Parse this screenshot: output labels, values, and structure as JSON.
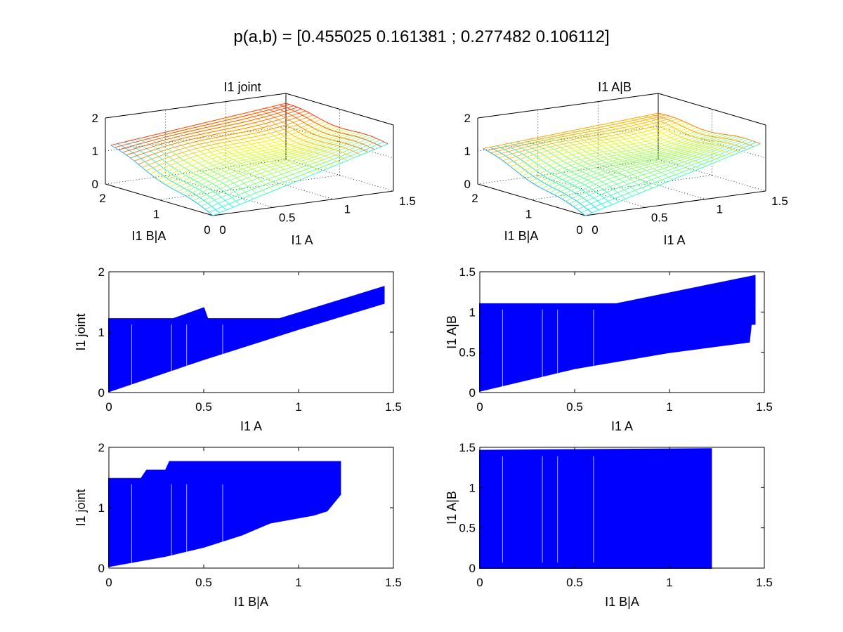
{
  "figure": {
    "title": "p(a,b) = [0.455025 0.161381 ; 0.277482 0.106112]",
    "background": "#ffffff",
    "scatter_color": "#0000ff"
  },
  "chart_data": [
    {
      "type": "surface",
      "title": "I1 joint",
      "xlabel": "I1 A",
      "ylabel": "I1 B|A",
      "zlabel": "",
      "xlim": [
        0,
        1.5
      ],
      "ylim": [
        0,
        2
      ],
      "zlim": [
        0,
        2
      ],
      "xticks": [
        "0",
        "0.5",
        "1",
        "1.5"
      ],
      "yticks": [
        "0",
        "1",
        "2"
      ],
      "zticks": [
        "0",
        "1",
        "2"
      ],
      "colormap": "jet",
      "grid": true,
      "z_corners": {
        "a0_b0": 0.0,
        "a1_b0": 1.45,
        "a0_b1": 1.2,
        "a1_b1": 1.75
      }
    },
    {
      "type": "surface",
      "title": "I1 A|B",
      "xlabel": "I1 A",
      "ylabel": "I1 B|A",
      "zlabel": "",
      "xlim": [
        0,
        1.5
      ],
      "ylim": [
        0,
        2
      ],
      "zlim": [
        0,
        2
      ],
      "xticks": [
        "0",
        "0.5",
        "1",
        "1.5"
      ],
      "yticks": [
        "0",
        "1",
        "2"
      ],
      "zticks": [
        "0",
        "1",
        "2"
      ],
      "colormap": "jet",
      "grid": true,
      "z_corners": {
        "a0_b0": 0.0,
        "a1_b0": 1.45,
        "a0_b1": 1.1,
        "a1_b1": 1.45
      }
    },
    {
      "type": "scatter",
      "title": "",
      "xlabel": "I1 A",
      "ylabel": "I1 joint",
      "xlim": [
        0,
        1.5
      ],
      "ylim": [
        0,
        2
      ],
      "xticks": [
        "0",
        "0.5",
        "1",
        "1.5"
      ],
      "yticks": [
        "0",
        "1",
        "2"
      ],
      "color": "#0000ff",
      "lower_edge": [
        [
          0,
          0.02
        ],
        [
          0.5,
          0.55
        ],
        [
          1.0,
          1.05
        ],
        [
          1.45,
          1.48
        ]
      ],
      "upper_edge": [
        [
          0,
          1.22
        ],
        [
          0.34,
          1.22
        ],
        [
          0.5,
          1.4
        ],
        [
          0.52,
          1.22
        ],
        [
          0.9,
          1.22
        ],
        [
          1.45,
          1.75
        ]
      ]
    },
    {
      "type": "scatter",
      "title": "",
      "xlabel": "I1 A",
      "ylabel": "I1 A|B",
      "xlim": [
        0,
        1.5
      ],
      "ylim": [
        0,
        1.5
      ],
      "xticks": [
        "0",
        "0.5",
        "1",
        "1.5"
      ],
      "yticks": [
        "0",
        "0.5",
        "1",
        "1.5"
      ],
      "color": "#0000ff",
      "lower_edge": [
        [
          0,
          0.02
        ],
        [
          0.5,
          0.3
        ],
        [
          1.0,
          0.5
        ],
        [
          1.42,
          0.63
        ],
        [
          1.43,
          0.85
        ],
        [
          1.45,
          0.85
        ]
      ],
      "upper_edge": [
        [
          0,
          1.1
        ],
        [
          0.72,
          1.1
        ],
        [
          1.45,
          1.45
        ]
      ]
    },
    {
      "type": "scatter",
      "title": "",
      "xlabel": "I1 B|A",
      "ylabel": "I1 joint",
      "xlim": [
        0,
        1.5
      ],
      "ylim": [
        0,
        2
      ],
      "xticks": [
        "0",
        "0.5",
        "1",
        "1.5"
      ],
      "yticks": [
        "0",
        "1",
        "2"
      ],
      "color": "#0000ff",
      "lower_edge": [
        [
          0,
          0.03
        ],
        [
          0.3,
          0.2
        ],
        [
          0.5,
          0.35
        ],
        [
          0.7,
          0.55
        ],
        [
          0.85,
          0.75
        ],
        [
          1.08,
          0.88
        ],
        [
          1.15,
          0.95
        ],
        [
          1.22,
          1.22
        ]
      ],
      "upper_edge": [
        [
          0,
          1.48
        ],
        [
          0.17,
          1.48
        ],
        [
          0.2,
          1.62
        ],
        [
          0.3,
          1.62
        ],
        [
          0.32,
          1.76
        ],
        [
          1.22,
          1.76
        ]
      ]
    },
    {
      "type": "scatter",
      "title": "",
      "xlabel": "I1 B|A",
      "ylabel": "I1 A|B",
      "xlim": [
        0,
        1.5
      ],
      "ylim": [
        0,
        1.5
      ],
      "xticks": [
        "0",
        "0.5",
        "1",
        "1.5"
      ],
      "yticks": [
        "0",
        "0.5",
        "1",
        "1.5"
      ],
      "color": "#0000ff",
      "lower_edge": [
        [
          0,
          0.0
        ],
        [
          1.22,
          0.0
        ]
      ],
      "upper_edge": [
        [
          0,
          1.46
        ],
        [
          1.22,
          1.48
        ]
      ]
    }
  ]
}
